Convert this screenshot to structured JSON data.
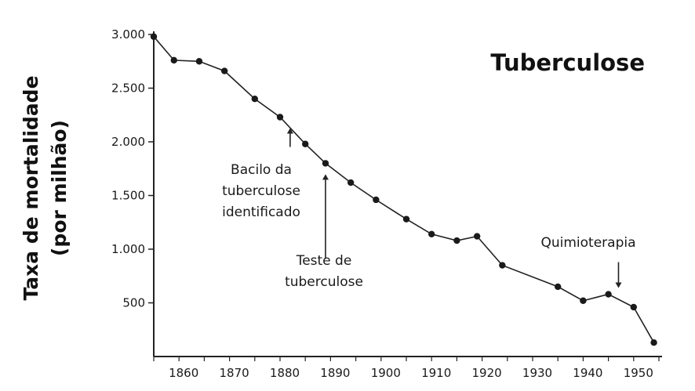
{
  "chart_data": {
    "type": "line",
    "title": "Tuberculose",
    "ylabel_line1": "Taxa de mortalidade",
    "ylabel_line2": "(por milhão)",
    "xlabel": "",
    "xlim": [
      1855,
      1955
    ],
    "ylim": [
      0,
      3000
    ],
    "x_ticks": [
      1860,
      1870,
      1880,
      1890,
      1900,
      1910,
      1920,
      1930,
      1940,
      1950
    ],
    "y_ticks": [
      500,
      1000,
      1500,
      2000,
      2500,
      3000
    ],
    "y_tick_labels": [
      "500",
      "1.000",
      "1.500",
      "2.000",
      "2.500",
      "3.000"
    ],
    "grid": false,
    "series": [
      {
        "x": [
          1855,
          1859,
          1864,
          1869,
          1875,
          1880,
          1885,
          1889,
          1894,
          1899,
          1905,
          1910,
          1915,
          1919,
          1924,
          1935,
          1940,
          1945,
          1950,
          1954
        ],
        "y": [
          2980,
          2760,
          2750,
          2660,
          2400,
          2230,
          1980,
          1800,
          1620,
          1460,
          1280,
          1140,
          1080,
          1120,
          850,
          650,
          520,
          580,
          460,
          130
        ]
      }
    ],
    "annotations": [
      {
        "lines": [
          "Bacilo da",
          "tuberculose",
          "identificado"
        ],
        "x": 1882,
        "y": 2230
      },
      {
        "lines": [
          "Teste de",
          "tuberculose"
        ],
        "x": 1889,
        "y": 1800
      },
      {
        "lines": [
          "Quimioterapia"
        ],
        "x": 1947,
        "y": 580
      }
    ]
  }
}
